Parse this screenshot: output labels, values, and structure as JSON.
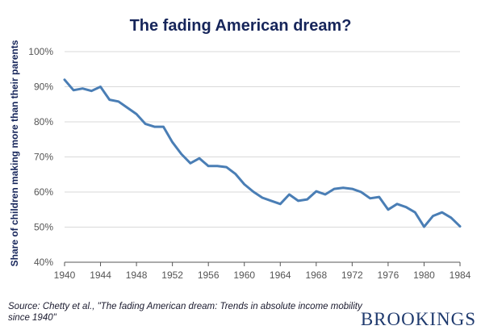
{
  "colors": {
    "title": "#16255a",
    "line": "#4a7eb5",
    "grid": "#d9d9d9",
    "axis": "#555555",
    "brand": "#1f3a6e"
  },
  "source": "Source: Chetty et al., \"The fading American dream: Trends in absolute income mobility since 1940\"",
  "brand": "BROOKINGS",
  "chart_data": {
    "type": "line",
    "title": "The fading American dream?",
    "xlabel": "",
    "ylabel": "Share of children making more than their parents",
    "xlim": [
      1940,
      1984
    ],
    "ylim": [
      40,
      100
    ],
    "x_ticks": [
      "1940",
      "1944",
      "1948",
      "1952",
      "1956",
      "1960",
      "1964",
      "1968",
      "1972",
      "1976",
      "1980",
      "1984"
    ],
    "y_ticks": [
      "40%",
      "50%",
      "60%",
      "70%",
      "80%",
      "90%",
      "100%"
    ],
    "grid": "horizontal",
    "series": [
      {
        "x": [
          1940,
          1941,
          1942,
          1943,
          1944,
          1945,
          1946,
          1947,
          1948,
          1949,
          1950,
          1951,
          1952,
          1953,
          1954,
          1955,
          1956,
          1957,
          1958,
          1959,
          1960,
          1961,
          1962,
          1963,
          1964,
          1965,
          1966,
          1967,
          1968,
          1969,
          1970,
          1971,
          1972,
          1973,
          1974,
          1975,
          1976,
          1977,
          1978,
          1979,
          1980,
          1981,
          1982,
          1983,
          1984
        ],
        "values": [
          92,
          89,
          89.5,
          88.8,
          90,
          86.3,
          85.8,
          84,
          82.2,
          79.4,
          78.6,
          78.6,
          74.2,
          70.8,
          68.2,
          69.6,
          67.4,
          67.4,
          67.1,
          65.2,
          62.2,
          60.1,
          58.4,
          57.5,
          56.6,
          59.3,
          57.5,
          57.9,
          60.2,
          59.3,
          60.9,
          61.2,
          60.9,
          60,
          58.2,
          58.6,
          55,
          56.6,
          55.7,
          54.2,
          50.1,
          53.2,
          54.2,
          52.7,
          50.2
        ]
      }
    ]
  }
}
